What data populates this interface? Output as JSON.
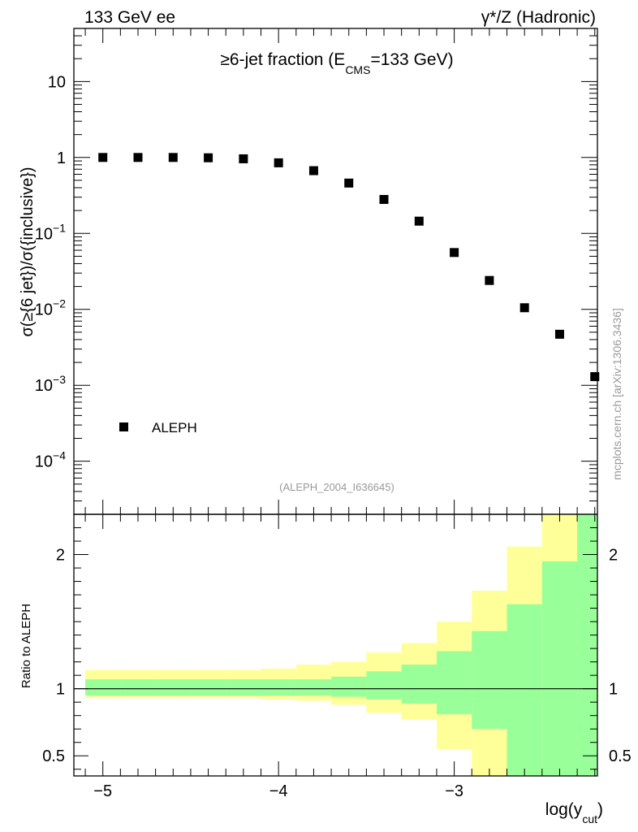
{
  "header": {
    "left": "133 GeV ee",
    "right": "γ*/Z (Hadronic)",
    "side_label": "mcplots.cern.ch [arXiv:1306.3436]",
    "ref_id": "(ALEPH_2004_I636645)"
  },
  "chart_data": [
    {
      "type": "scatter",
      "title": "≥6-jet fraction (E_CMS=133 GeV)",
      "title_parts": {
        "main": "≥6-jet fraction (E",
        "sub": "CMS",
        "tail": "=133 GeV)"
      },
      "ylabel": "σ(≥{6 jet})/σ({inclusive})",
      "yscale": "log",
      "ylim": [
        2e-05,
        50
      ],
      "xlim": [
        -5.165,
        -2.185
      ],
      "y_ticks": [
        {
          "v": 10,
          "base": "10",
          "exp": ""
        },
        {
          "v": 1,
          "base": "1",
          "exp": ""
        },
        {
          "v": 0.1,
          "base": "10",
          "exp": "−1"
        },
        {
          "v": 0.01,
          "base": "10",
          "exp": "−2"
        },
        {
          "v": 0.001,
          "base": "10",
          "exp": "−3"
        },
        {
          "v": 0.0001,
          "base": "10",
          "exp": "−4"
        }
      ],
      "legend": {
        "label": "ALEPH",
        "placement": "bottom-left"
      },
      "series": [
        {
          "name": "ALEPH",
          "x": [
            -5.0,
            -4.8,
            -4.6,
            -4.4,
            -4.2,
            -4.0,
            -3.8,
            -3.6,
            -3.4,
            -3.2,
            -3.0,
            -2.8,
            -2.6,
            -2.4,
            -2.2
          ],
          "y": [
            1.0,
            1.0,
            1.0,
            0.99,
            0.96,
            0.85,
            0.67,
            0.46,
            0.28,
            0.145,
            0.056,
            0.024,
            0.0105,
            0.0047,
            0.0013
          ]
        }
      ]
    },
    {
      "type": "area",
      "title": "",
      "ylabel": "Ratio to ALEPH",
      "xlabel": "log(y_cut)",
      "xlabel_parts": {
        "main": "log(y",
        "sub": "cut",
        "tail": ")"
      },
      "xlim": [
        -5.165,
        -2.185
      ],
      "ylim": [
        0.35,
        2.3
      ],
      "x_ticks": [
        {
          "v": -5,
          "label": "−5"
        },
        {
          "v": -4,
          "label": "−4"
        },
        {
          "v": -3,
          "label": "−3"
        }
      ],
      "y_ticks": [
        {
          "v": 2,
          "label": "2"
        },
        {
          "v": 1,
          "label": "1"
        },
        {
          "v": 0.5,
          "label": "0.5"
        }
      ],
      "reference_line": 1,
      "bin_edges": [
        -5.1,
        -4.9,
        -4.7,
        -4.5,
        -4.3,
        -4.1,
        -3.9,
        -3.7,
        -3.5,
        -3.3,
        -3.1,
        -2.9,
        -2.7,
        -2.5,
        -2.3,
        -2.1
      ],
      "bands": [
        {
          "name": "total uncertainty",
          "color": "#ffff99",
          "low": [
            0.93,
            0.93,
            0.93,
            0.93,
            0.93,
            0.92,
            0.91,
            0.88,
            0.82,
            0.77,
            0.55,
            0.35,
            0.43,
            0.35,
            0.35
          ],
          "high": [
            1.14,
            1.14,
            1.14,
            1.14,
            1.14,
            1.15,
            1.18,
            1.2,
            1.27,
            1.34,
            1.5,
            1.73,
            2.06,
            2.3,
            2.3
          ]
        },
        {
          "name": "statistical uncertainty",
          "color": "#99ff99",
          "low": [
            0.95,
            0.95,
            0.95,
            0.95,
            0.95,
            0.95,
            0.95,
            0.94,
            0.92,
            0.89,
            0.81,
            0.7,
            0.35,
            0.35,
            0.35
          ],
          "high": [
            1.07,
            1.07,
            1.07,
            1.07,
            1.07,
            1.07,
            1.07,
            1.09,
            1.13,
            1.18,
            1.28,
            1.43,
            1.63,
            1.95,
            2.3
          ]
        }
      ]
    }
  ]
}
